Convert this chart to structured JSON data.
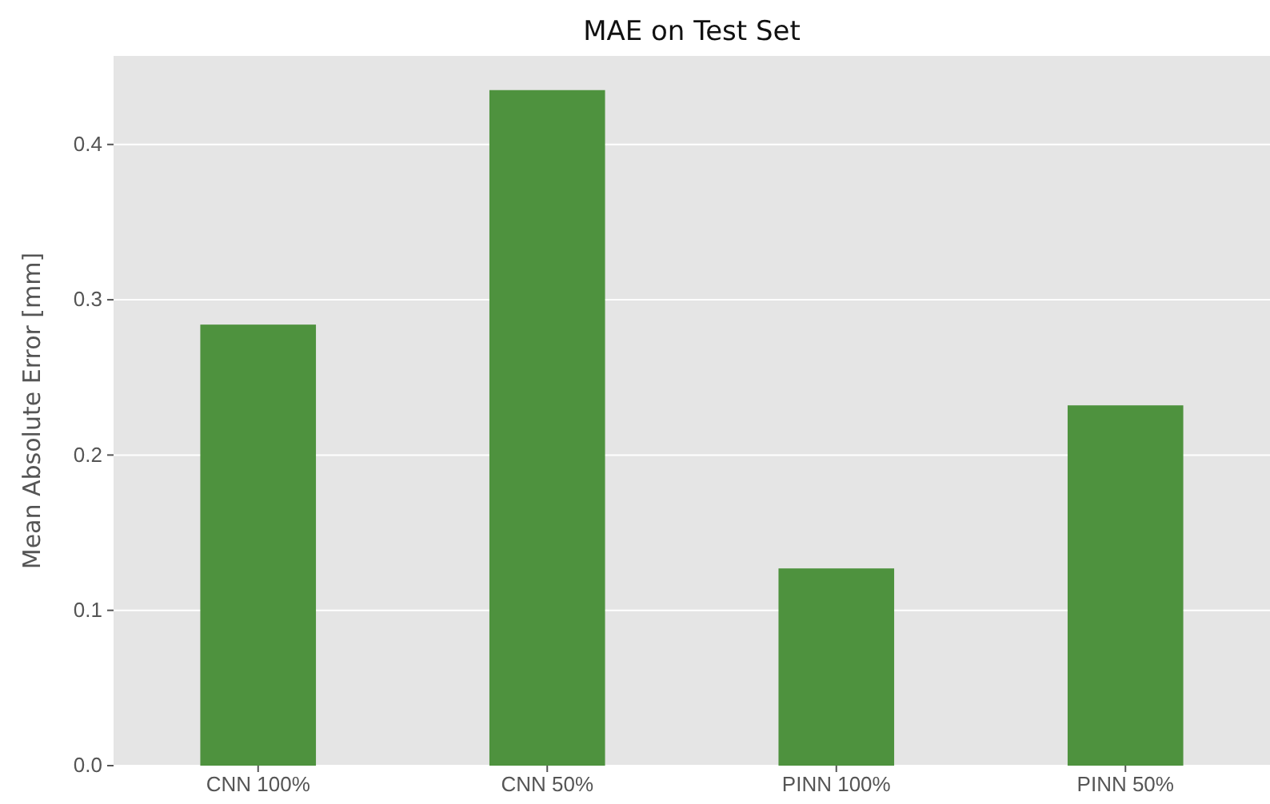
{
  "chart_data": {
    "type": "bar",
    "title": "MAE on Test Set",
    "ylabel": "Mean Absolute Error [mm]",
    "categories": [
      "CNN 100%",
      "CNN 50%",
      "PINN 100%",
      "PINN 50%"
    ],
    "values": [
      0.284,
      0.435,
      0.127,
      0.232
    ],
    "color": "#4e923e",
    "ylim": [
      0,
      0.457
    ],
    "yticks": [
      {
        "value": 0,
        "label": "0.0"
      },
      0.1,
      0.2,
      0.3,
      0.4
    ],
    "grid": "y"
  }
}
